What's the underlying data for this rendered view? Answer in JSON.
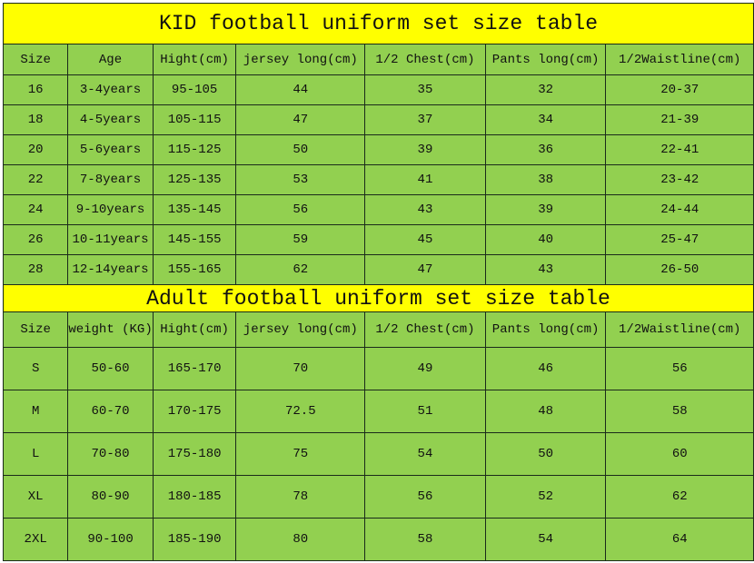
{
  "kid": {
    "title": "KID football uniform set size table",
    "headers": [
      "Size",
      "Age",
      "Hight(cm)",
      "jersey long(cm)",
      "1/2 Chest(cm)",
      "Pants long(cm)",
      "1/2Waistline(cm)"
    ],
    "rows": [
      [
        "16",
        "3-4years",
        "95-105",
        "44",
        "35",
        "32",
        "20-37"
      ],
      [
        "18",
        "4-5years",
        "105-115",
        "47",
        "37",
        "34",
        "21-39"
      ],
      [
        "20",
        "5-6years",
        "115-125",
        "50",
        "39",
        "36",
        "22-41"
      ],
      [
        "22",
        "7-8years",
        "125-135",
        "53",
        "41",
        "38",
        "23-42"
      ],
      [
        "24",
        "9-10years",
        "135-145",
        "56",
        "43",
        "39",
        "24-44"
      ],
      [
        "26",
        "10-11years",
        "145-155",
        "59",
        "45",
        "40",
        "25-47"
      ],
      [
        "28",
        "12-14years",
        "155-165",
        "62",
        "47",
        "43",
        "26-50"
      ]
    ]
  },
  "adult": {
    "title": "Adult football uniform set size table",
    "headers": [
      "Size",
      "weight (KG)",
      "Hight(cm)",
      "jersey long(cm)",
      "1/2 Chest(cm)",
      "Pants long(cm)",
      "1/2Waistline(cm)"
    ],
    "rows": [
      [
        "S",
        "50-60",
        "165-170",
        "70",
        "49",
        "46",
        "56"
      ],
      [
        "M",
        "60-70",
        "170-175",
        "72.5",
        "51",
        "48",
        "58"
      ],
      [
        "L",
        "70-80",
        "175-180",
        "75",
        "54",
        "50",
        "60"
      ],
      [
        "XL",
        "80-90",
        "180-185",
        "78",
        "56",
        "52",
        "62"
      ],
      [
        "2XL",
        "90-100",
        "185-190",
        "80",
        "58",
        "54",
        "64"
      ]
    ]
  },
  "colors": {
    "title_bg": "#ffff00",
    "cell_bg": "#92d050"
  }
}
